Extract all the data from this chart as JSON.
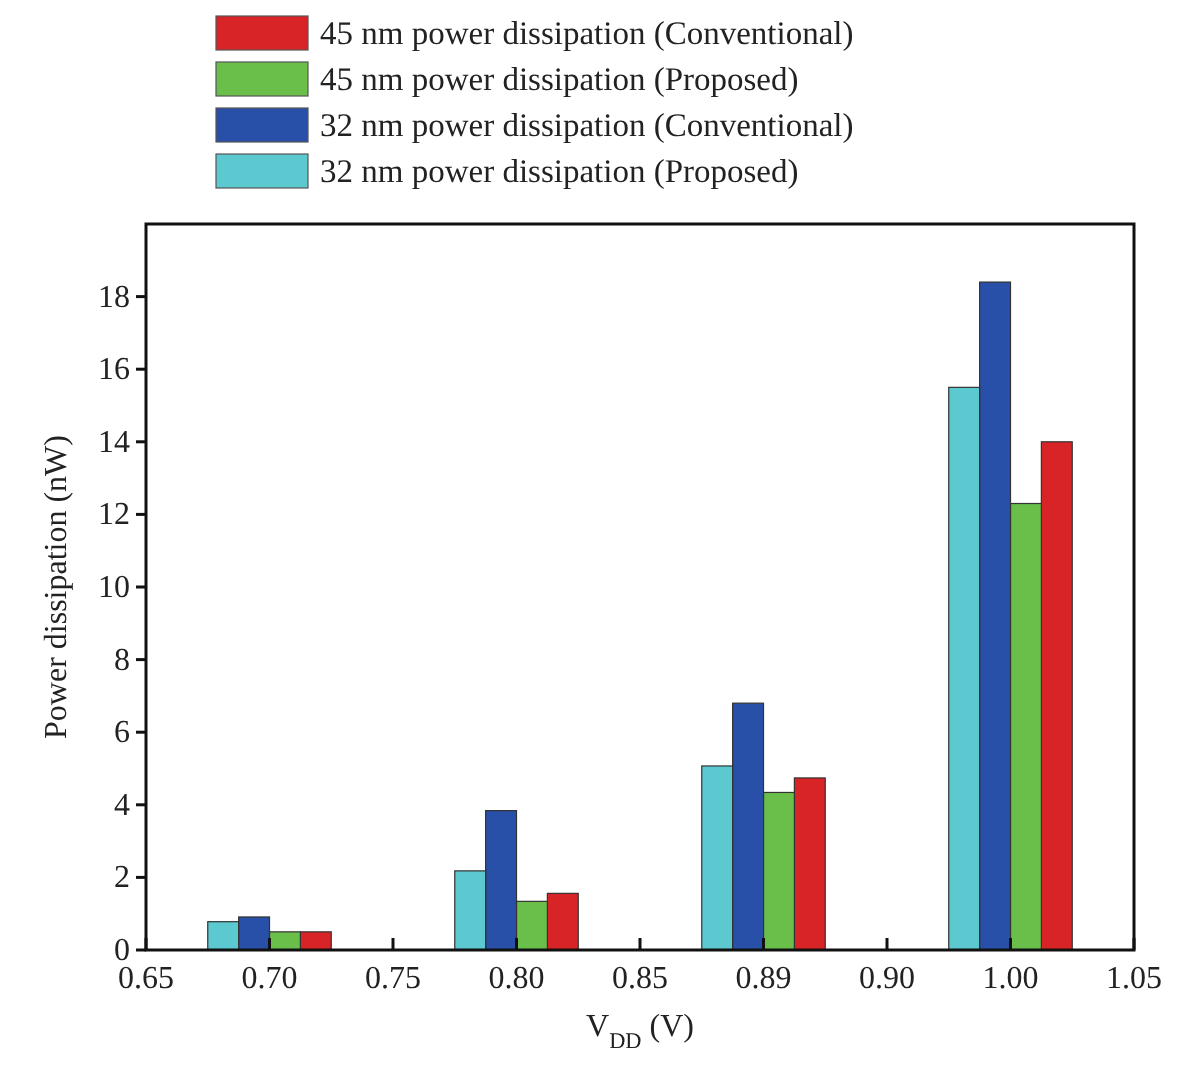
{
  "chart_data": {
    "type": "bar",
    "xlabel": "V$_{DD}$ (V)",
    "ylabel": "Power dissipation (nW)",
    "categories": [
      "0.65",
      "0.70",
      "0.75",
      "0.80",
      "0.85",
      "0.89",
      "0.90",
      "1.00",
      "1.05"
    ],
    "ylim": [
      0,
      20
    ],
    "yticks": [
      0,
      2,
      4,
      6,
      8,
      10,
      12,
      14,
      16,
      18
    ],
    "grid": false,
    "legend": "top",
    "series": [
      {
        "name": "45 nm power dissipation (Conventional)",
        "color": "#d92427",
        "values": [
          null,
          0.5,
          null,
          1.56,
          null,
          4.74,
          null,
          14.0,
          null
        ]
      },
      {
        "name": "45 nm power dissipation (Proposed)",
        "color": "#6abf4b",
        "values": [
          null,
          0.5,
          null,
          1.34,
          null,
          4.34,
          null,
          12.3,
          null
        ]
      },
      {
        "name": "32 nm power dissipation (Conventional)",
        "color": "#2850a8",
        "values": [
          null,
          0.91,
          null,
          3.84,
          null,
          6.8,
          null,
          18.4,
          null
        ]
      },
      {
        "name": "32 nm power dissipation (Proposed)",
        "color": "#5cc8d0",
        "values": [
          null,
          0.78,
          null,
          2.18,
          null,
          5.07,
          null,
          15.5,
          null
        ]
      }
    ]
  }
}
